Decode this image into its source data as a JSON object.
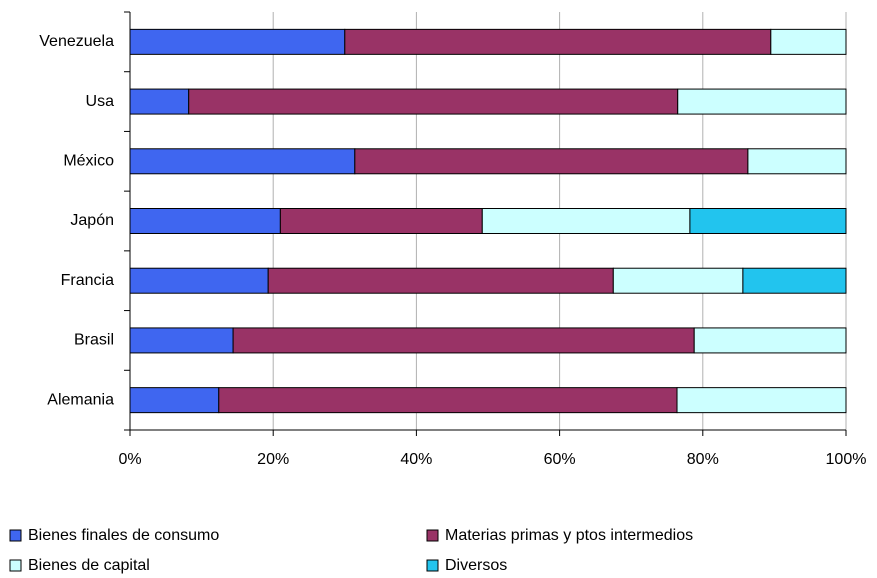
{
  "chart_data": {
    "type": "stacked-bar-horizontal",
    "categories": [
      "Venezuela",
      "Usa",
      "México",
      "Japón",
      "Francia",
      "Brasil",
      "Alemania"
    ],
    "series": [
      {
        "name": "Bienes finales de consumo",
        "color": "#3f66f0",
        "values": [
          30,
          8.2,
          31.4,
          21,
          19.3,
          14.4,
          12.4
        ]
      },
      {
        "name": "Materias primas y ptos intermedios",
        "color": "#993366",
        "values": [
          59.5,
          68.3,
          54.9,
          28.2,
          48.2,
          64.4,
          64
        ]
      },
      {
        "name": "Bienes de capital",
        "color": "#ccffff",
        "values": [
          10.5,
          23.5,
          13.7,
          29,
          18.1,
          21.2,
          23.6
        ]
      },
      {
        "name": "Diversos",
        "color": "#22c4ee",
        "values": [
          0,
          0,
          0,
          21.8,
          14.4,
          0,
          0
        ]
      }
    ],
    "xlim": [
      0,
      100
    ],
    "xticks": [
      {
        "value": 0,
        "label": "0%"
      },
      {
        "value": 20,
        "label": "20%"
      },
      {
        "value": 40,
        "label": "40%"
      },
      {
        "value": 60,
        "label": "60%"
      },
      {
        "value": 80,
        "label": "80%"
      },
      {
        "value": 100,
        "label": "100%"
      }
    ],
    "grid": true
  }
}
